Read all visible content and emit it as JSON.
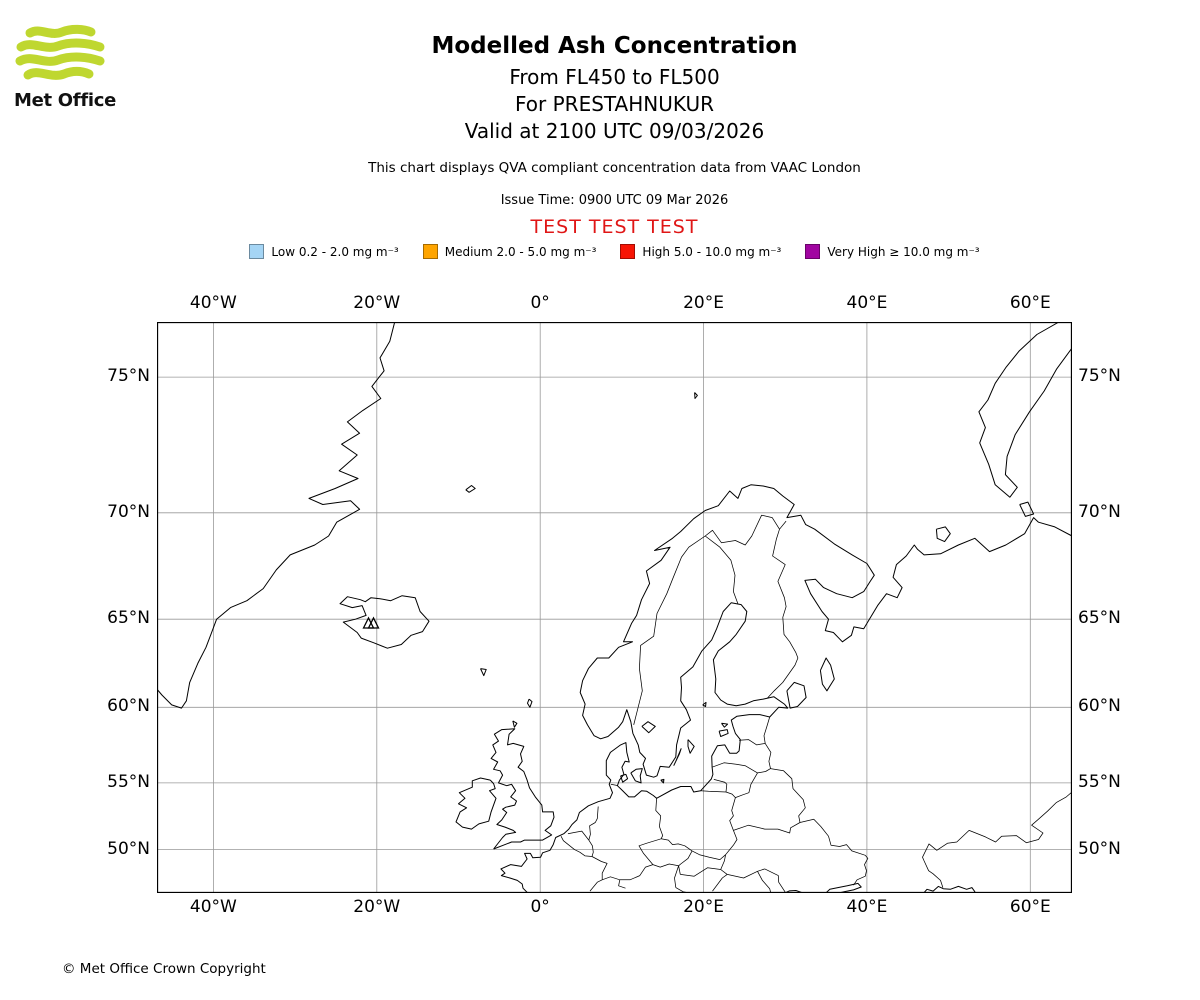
{
  "colors": {
    "brand_green": "#BFD730",
    "test_red": "#E01616",
    "grid_gray": "#999999"
  },
  "logo": {
    "brand": "Met Office"
  },
  "header": {
    "title": "Modelled Ash Concentration",
    "flight_levels": "From FL450 to FL500",
    "volcano_line": "For PRESTAHNUKUR",
    "valid_line": "Valid at 2100 UTC 09/03/2026",
    "description": "This chart displays QVA compliant concentration data from VAAC London",
    "issue_time": "Issue Time: 0900 UTC 09 Mar 2026",
    "test_banner": "TEST TEST TEST"
  },
  "legend": {
    "items": [
      {
        "name": "low",
        "color": "#A5D5F5",
        "label": "Low 0.2 - 2.0 mg m⁻³"
      },
      {
        "name": "medium",
        "color": "#FFA500",
        "label": "Medium 2.0 - 5.0 mg m⁻³"
      },
      {
        "name": "high",
        "color": "#F71505",
        "label": "High 5.0 - 10.0 mg m⁻³"
      },
      {
        "name": "very-high",
        "color": "#A105A1",
        "label": "Very High ≥ 10.0 mg m⁻³"
      }
    ]
  },
  "map": {
    "x_ticks": [
      {
        "label": "40°W",
        "lon": -40
      },
      {
        "label": "20°W",
        "lon": -20
      },
      {
        "label": "0°",
        "lon": 0
      },
      {
        "label": "20°E",
        "lon": 20
      },
      {
        "label": "40°E",
        "lon": 40
      },
      {
        "label": "60°E",
        "lon": 60
      }
    ],
    "y_ticks": [
      {
        "label": "75°N",
        "lat": 75
      },
      {
        "label": "70°N",
        "lat": 70
      },
      {
        "label": "65°N",
        "lat": 65
      },
      {
        "label": "60°N",
        "lat": 60
      },
      {
        "label": "55°N",
        "lat": 55
      },
      {
        "label": "50°N",
        "lat": 50
      }
    ],
    "volcano": {
      "name": "PRESTAHNUKUR",
      "lon": -20.7,
      "lat": 64.75,
      "marker": "triangle"
    }
  },
  "footer": {
    "copyright": "© Met Office Crown Copyright"
  }
}
